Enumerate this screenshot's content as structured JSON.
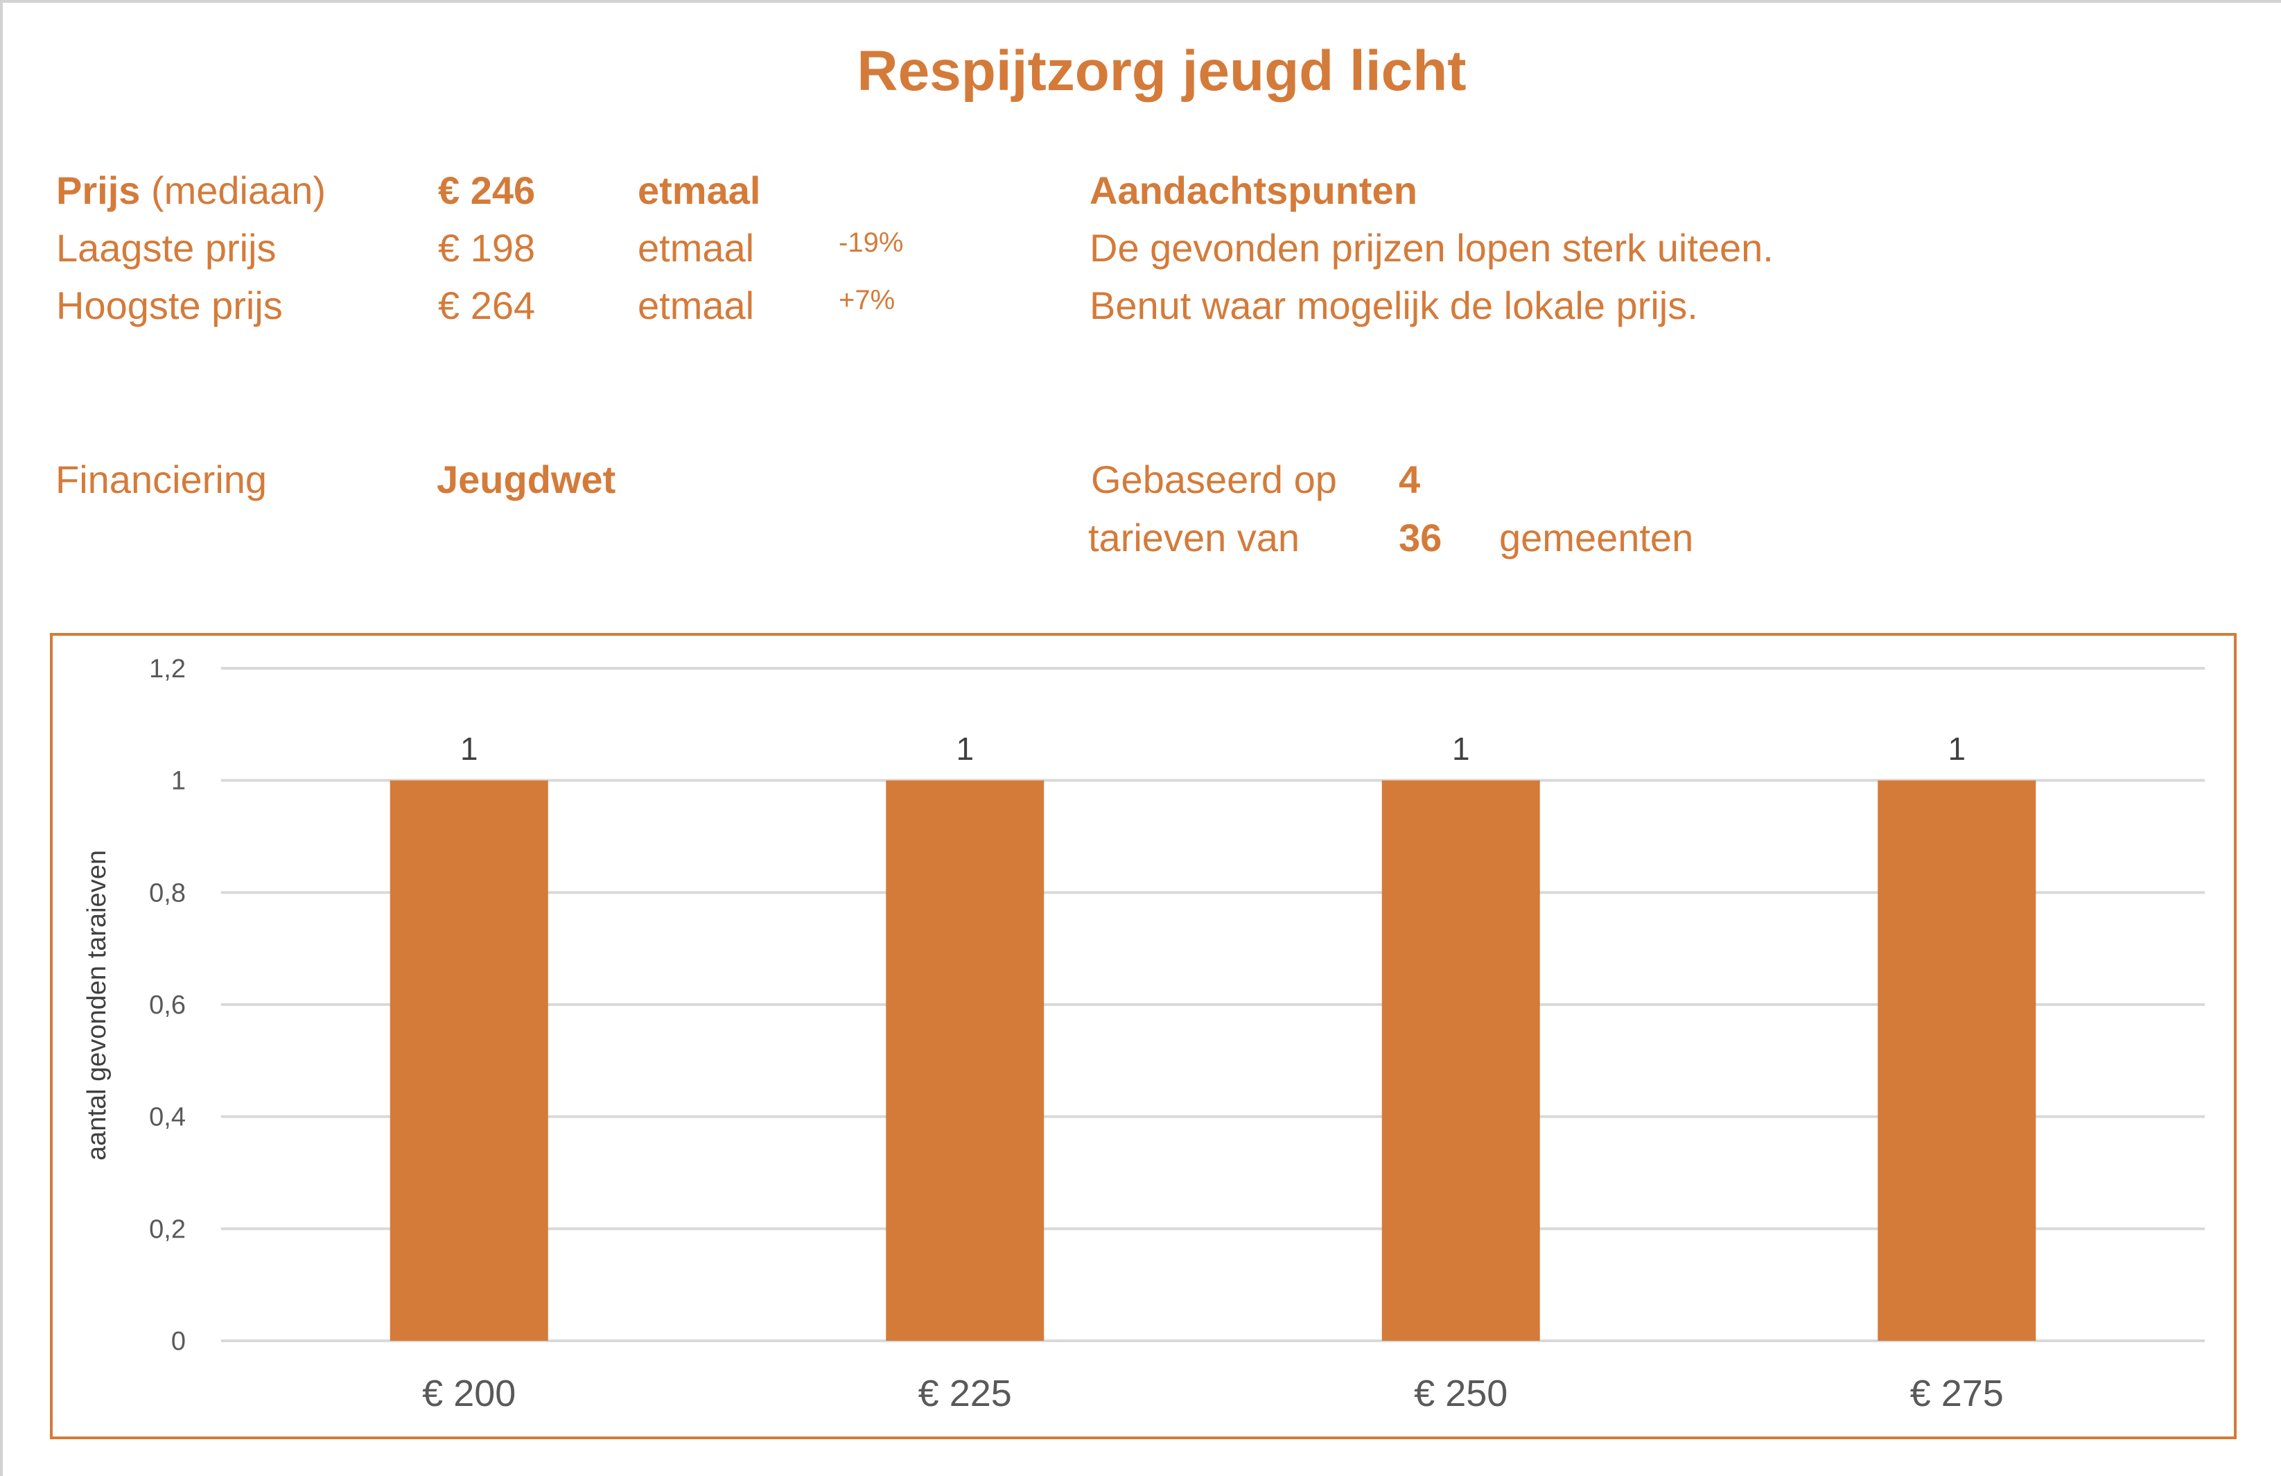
{
  "title": "Respijtzorg jeugd licht",
  "prices": {
    "median": {
      "label_bold": "Prijs",
      "label_rest": "(mediaan)",
      "value": "€ 246",
      "unit": "etmaal"
    },
    "lowest": {
      "label": "Laagste prijs",
      "value": "€ 198",
      "unit": "etmaal",
      "diff": "-19%"
    },
    "highest": {
      "label": "Hoogste prijs",
      "value": "€ 264",
      "unit": "etmaal",
      "diff": "+7%"
    }
  },
  "attention": {
    "heading": "Aandachtspunten",
    "lines": [
      "De gevonden prijzen lopen sterk uiteen.",
      "Benut waar mogelijk de lokale prijs."
    ]
  },
  "financing": {
    "label": "Financiering",
    "value": "Jeugdwet"
  },
  "basis": {
    "line1_label": "Gebaseerd op",
    "line1_value": "4",
    "line2_label": "tarieven van",
    "line2_value": "36",
    "line2_suffix": "gemeenten"
  },
  "colors": {
    "accent": "#D47B3A",
    "grid": "#D9D9D9",
    "axis_text": "#595959",
    "data_label": "#404040"
  },
  "chart_data": {
    "type": "bar",
    "title": "",
    "xlabel": "",
    "ylabel": "aantal gevonden taraieven",
    "categories": [
      "€ 200",
      "€ 225",
      "€ 250",
      "€ 275"
    ],
    "values": [
      1,
      1,
      1,
      1
    ],
    "data_labels": [
      "1",
      "1",
      "1",
      "1"
    ],
    "ylim": [
      0,
      1.2
    ],
    "yticks": [
      0,
      0.2,
      0.4,
      0.6,
      0.8,
      1,
      1.2
    ],
    "ytick_labels": [
      "0",
      "0,2",
      "0,4",
      "0,6",
      "0,8",
      "1",
      "1,2"
    ],
    "grid": true,
    "legend": "none"
  }
}
